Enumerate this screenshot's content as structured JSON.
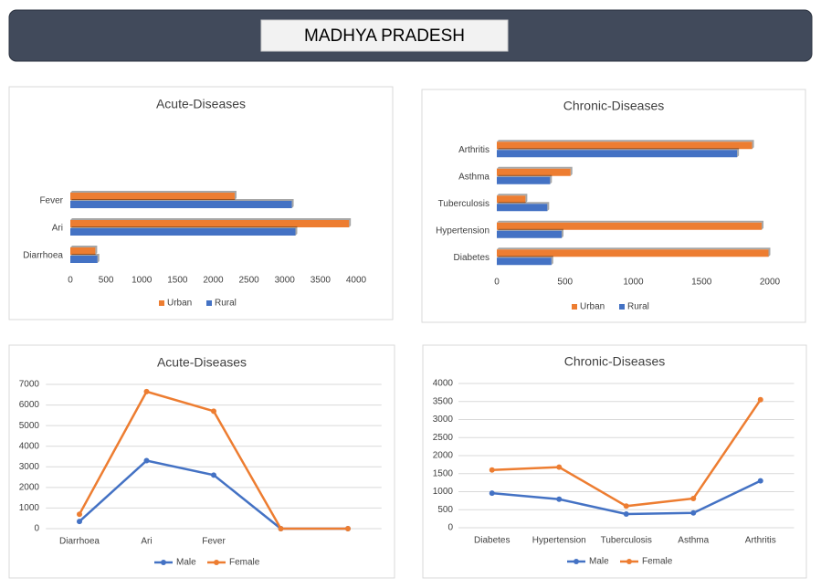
{
  "header": {
    "title": "MADHYA PRADESH"
  },
  "chart_data": [
    {
      "type": "hbar",
      "title": "Acute-Diseases",
      "categories": [
        "Diarrhoea",
        "Ari",
        "Fever",
        null,
        null
      ],
      "series": [
        {
          "name": "Urban",
          "color": "#ed7d31",
          "values": [
            350,
            3900,
            2300,
            0,
            0
          ]
        },
        {
          "name": "Rural",
          "color": "#4472c4",
          "values": [
            380,
            3150,
            3100,
            0,
            0
          ]
        }
      ],
      "xlim": [
        0,
        4000
      ],
      "xticks": [
        0,
        500,
        1000,
        1500,
        2000,
        2500,
        3000,
        3500,
        4000
      ],
      "grid": false,
      "legend": "bottom"
    },
    {
      "type": "hbar",
      "title": "Chronic-Diseases",
      "categories": [
        "Diabetes",
        "Hypertension",
        "Tuberculosis",
        "Asthma",
        "Arthritis"
      ],
      "series": [
        {
          "name": "Urban",
          "color": "#ed7d31",
          "values": [
            1990,
            1940,
            210,
            540,
            1870
          ]
        },
        {
          "name": "Rural",
          "color": "#4472c4",
          "values": [
            400,
            475,
            370,
            390,
            1760
          ]
        }
      ],
      "xlim": [
        0,
        2000
      ],
      "xticks": [
        0,
        500,
        1000,
        1500,
        2000
      ],
      "grid": false,
      "legend": "bottom"
    },
    {
      "type": "line",
      "title": "Acute-Diseases",
      "categories": [
        "Diarrhoea",
        "Ari",
        "Fever",
        null,
        null
      ],
      "series": [
        {
          "name": "Male",
          "color": "#4472c4",
          "values": [
            350,
            3300,
            2600,
            0,
            0
          ]
        },
        {
          "name": "Female",
          "color": "#ed7d31",
          "values": [
            700,
            6650,
            5700,
            0,
            0
          ]
        }
      ],
      "ylim": [
        0,
        7000
      ],
      "yticks": [
        0,
        1000,
        2000,
        3000,
        4000,
        5000,
        6000,
        7000
      ],
      "grid": true,
      "legend": "bottom"
    },
    {
      "type": "line",
      "title": "Chronic-Diseases",
      "categories": [
        "Diabetes",
        "Hypertension",
        "Tuberculosis",
        "Asthma",
        "Arthritis"
      ],
      "series": [
        {
          "name": "Male",
          "color": "#4472c4",
          "values": [
            960,
            790,
            380,
            410,
            1300
          ]
        },
        {
          "name": "Female",
          "color": "#ed7d31",
          "values": [
            1600,
            1680,
            600,
            810,
            3550
          ]
        }
      ],
      "ylim": [
        0,
        4000
      ],
      "yticks": [
        0,
        500,
        1000,
        1500,
        2000,
        2500,
        3000,
        3500,
        4000
      ],
      "grid": true,
      "legend": "bottom"
    }
  ]
}
